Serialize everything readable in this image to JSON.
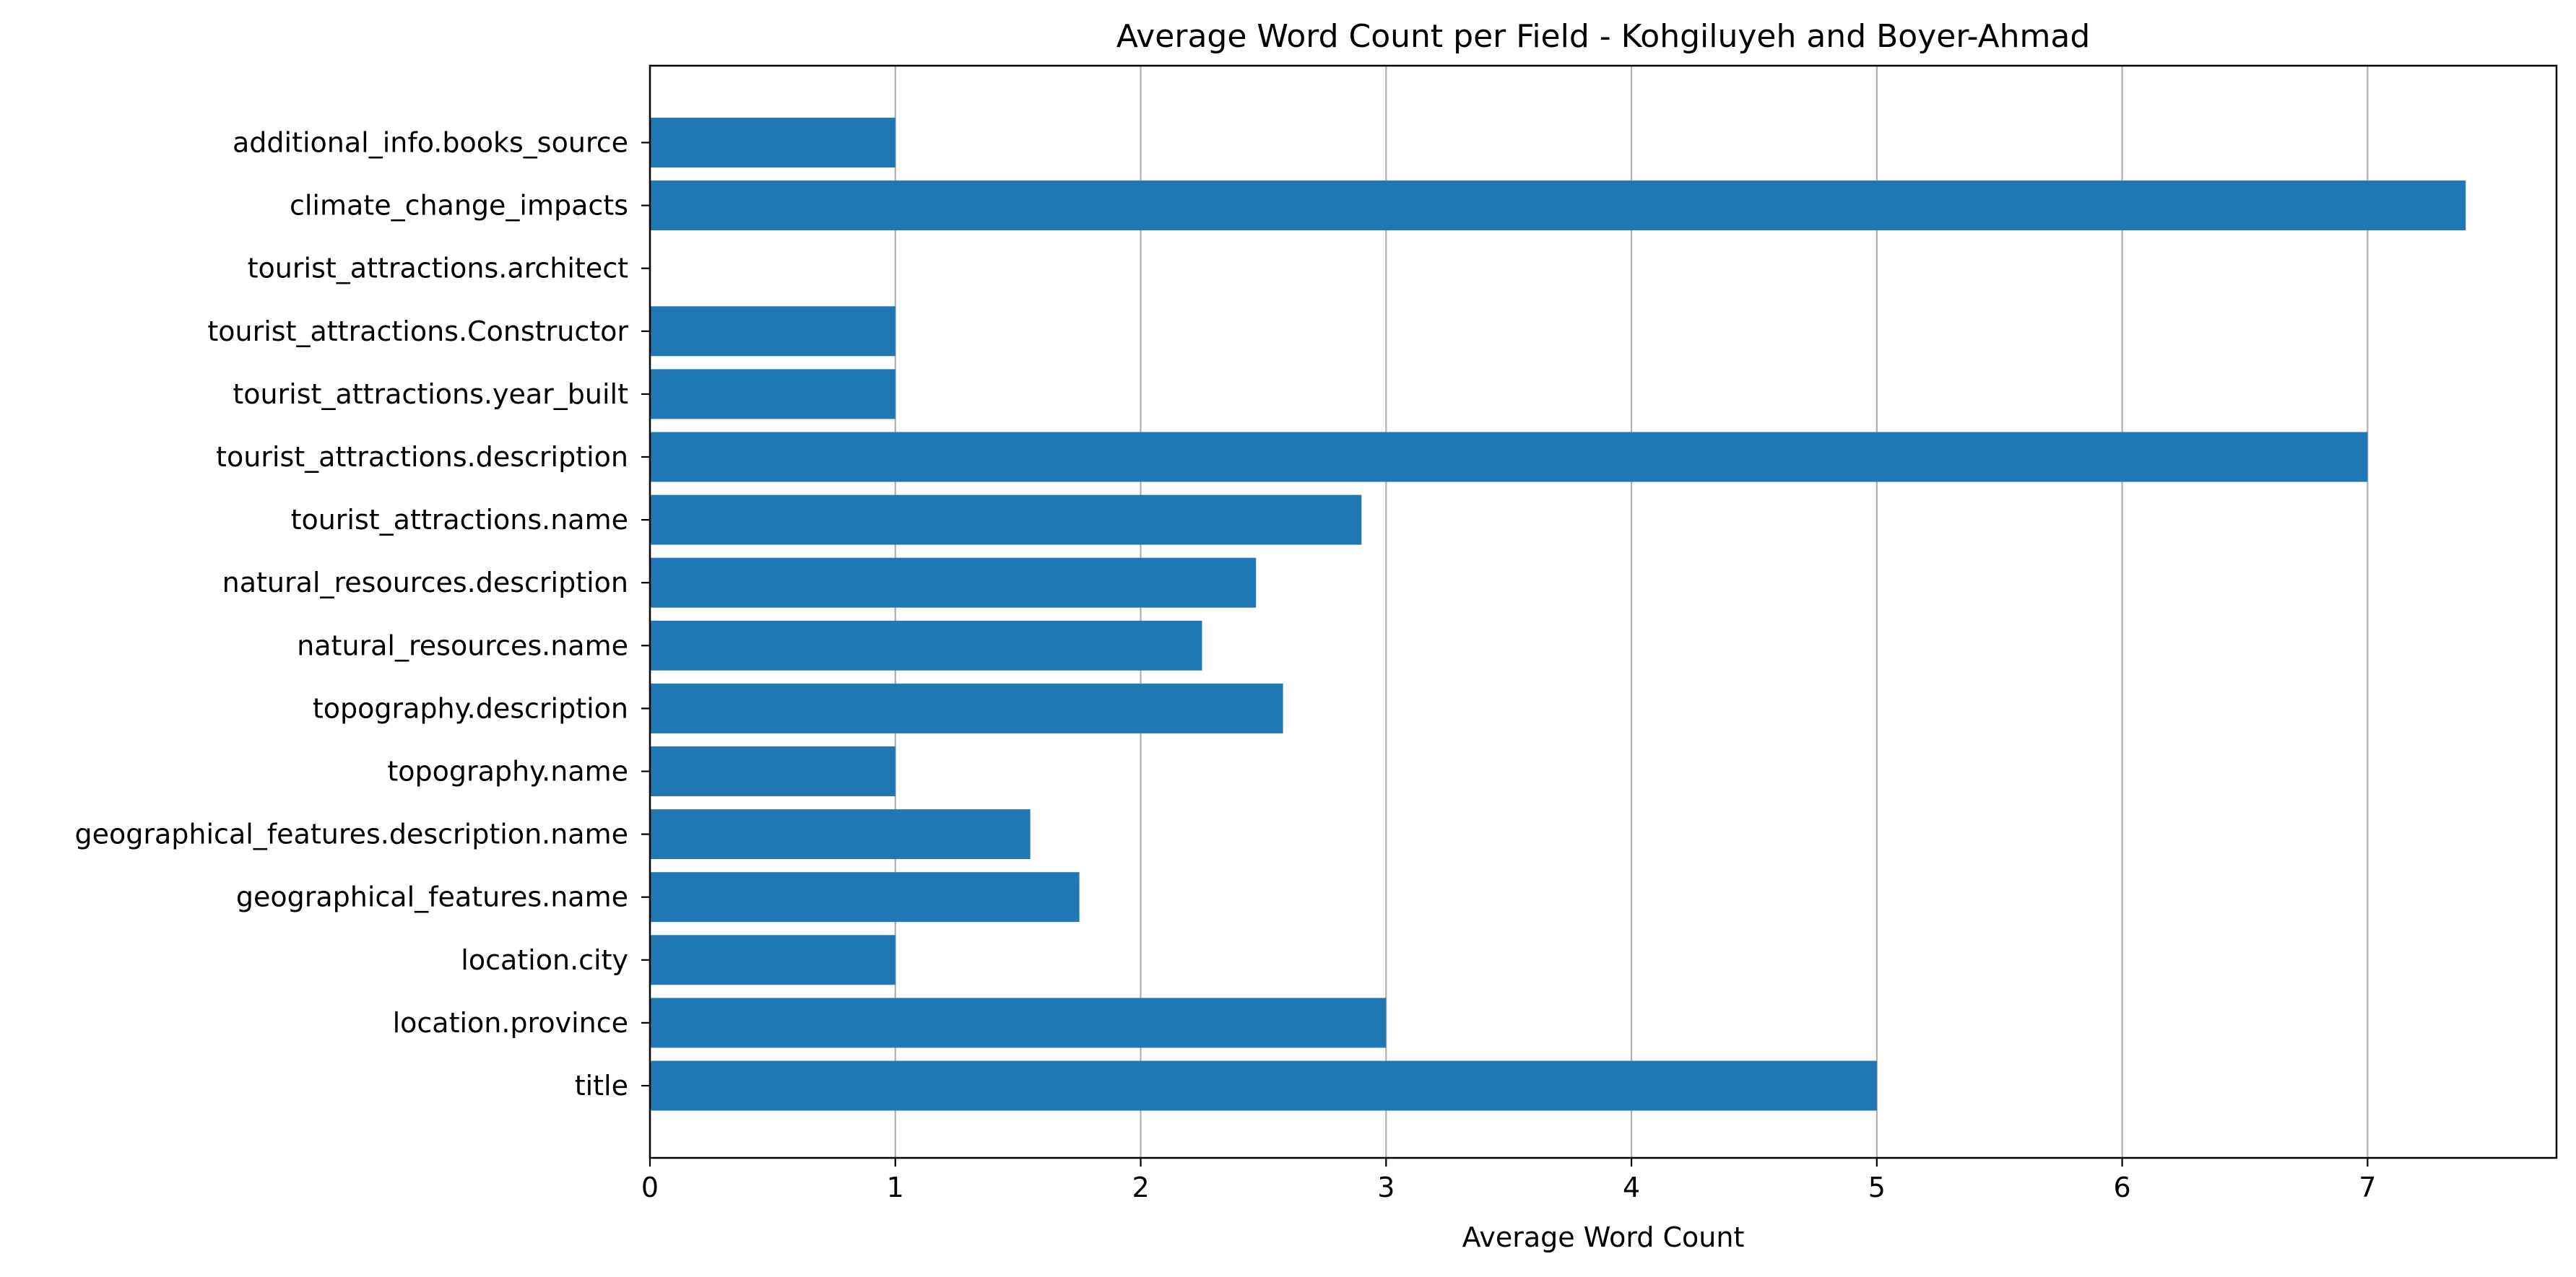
{
  "chart_data": {
    "type": "bar",
    "orientation": "horizontal",
    "title": "Average Word Count per Field - Kohgiluyeh and Boyer-Ahmad",
    "xlabel": "Average Word Count",
    "ylabel": "",
    "categories": [
      "title",
      "location.province",
      "location.city",
      "geographical_features.name",
      "geographical_features.description.name",
      "topography.name",
      "topography.description",
      "natural_resources.name",
      "natural_resources.description",
      "tourist_attractions.name",
      "tourist_attractions.description",
      "tourist_attractions.year_built",
      "tourist_attractions.Constructor",
      "tourist_attractions.architect",
      "climate_change_impacts",
      "additional_info.books_source"
    ],
    "values": [
      5.0,
      3.0,
      1.0,
      1.75,
      1.55,
      1.0,
      2.58,
      2.25,
      2.47,
      2.9,
      7.0,
      1.0,
      1.0,
      0,
      7.4,
      1.0
    ],
    "xlim": [
      0,
      7.77
    ],
    "xticks": [
      "0",
      "1",
      "2",
      "3",
      "4",
      "5",
      "6",
      "7"
    ],
    "grid": "x",
    "legend": "none",
    "bar_color": "#1f77b4",
    "grid_color": "#b0b0b0"
  }
}
